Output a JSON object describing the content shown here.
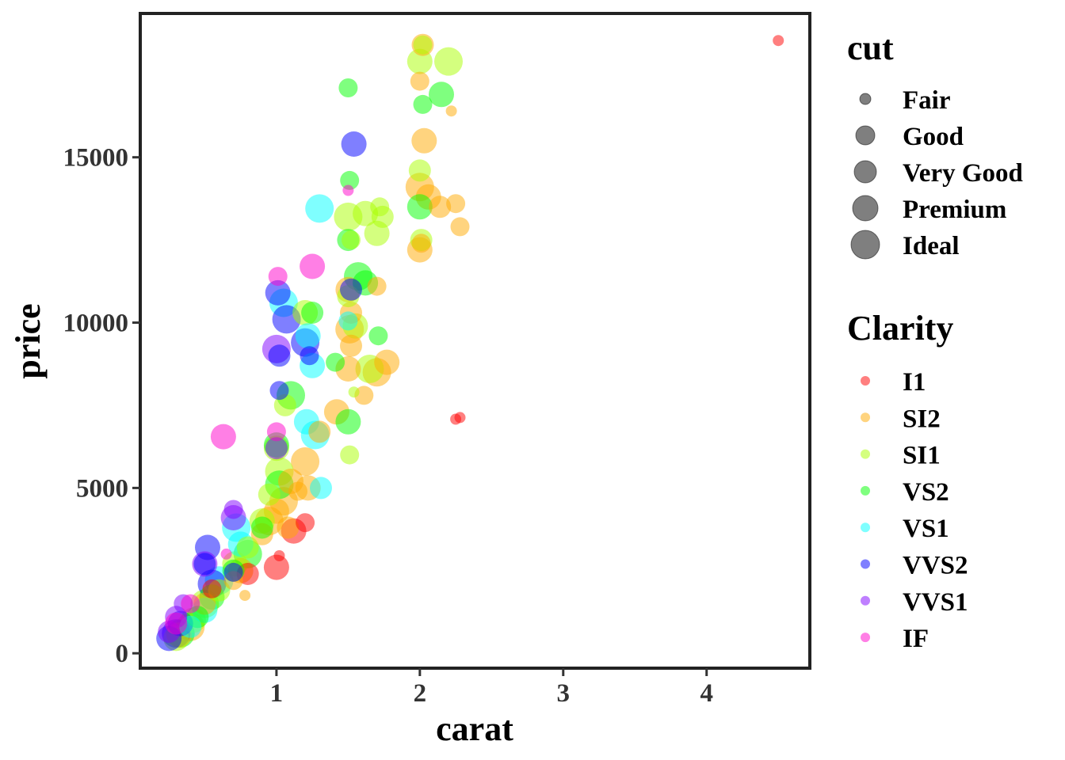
{
  "chart_data": {
    "type": "scatter",
    "xlabel": "carat",
    "ylabel": "price",
    "xlim": [
      0.05,
      4.72
    ],
    "ylim": [
      -450,
      19350
    ],
    "x_ticks": [
      1,
      2,
      3,
      4
    ],
    "x_tick_labels": [
      "1",
      "2",
      "3",
      "4"
    ],
    "y_ticks": [
      0,
      5000,
      10000,
      15000
    ],
    "y_tick_labels": [
      "0",
      "5000",
      "10000",
      "15000"
    ],
    "grid": false,
    "legend_position": "right",
    "point_alpha": 0.5,
    "size_legend": {
      "title": "cut",
      "levels": [
        "Fair",
        "Good",
        "Very Good",
        "Premium",
        "Ideal"
      ],
      "color": "#000000"
    },
    "color_legend": {
      "title": "Clarity",
      "levels": [
        "I1",
        "SI2",
        "SI1",
        "VS2",
        "VS1",
        "VVS2",
        "VVS1",
        "IF"
      ],
      "colors": {
        "I1": "#ff0000",
        "SI2": "#ffaa00",
        "SI1": "#aaff00",
        "VS2": "#00ff00",
        "VS1": "#00ffff",
        "VVS2": "#0000ff",
        "VVS1": "#8000ff",
        "IF": "#ff00cc"
      }
    },
    "points": [
      {
        "carat": 4.5,
        "price": 18530,
        "cut": "Fair",
        "clarity": "I1"
      },
      {
        "carat": 2.25,
        "price": 7080,
        "cut": "Fair",
        "clarity": "I1"
      },
      {
        "carat": 2.28,
        "price": 7130,
        "cut": "Fair",
        "clarity": "I1"
      },
      {
        "carat": 1.0,
        "price": 2600,
        "cut": "Premium",
        "clarity": "I1"
      },
      {
        "carat": 1.02,
        "price": 2950,
        "cut": "Fair",
        "clarity": "I1"
      },
      {
        "carat": 1.2,
        "price": 3950,
        "cut": "Good",
        "clarity": "I1"
      },
      {
        "carat": 1.12,
        "price": 3700,
        "cut": "Premium",
        "clarity": "I1"
      },
      {
        "carat": 0.55,
        "price": 1950,
        "cut": "Good",
        "clarity": "I1"
      },
      {
        "carat": 0.8,
        "price": 2400,
        "cut": "Very Good",
        "clarity": "I1"
      },
      {
        "carat": 2.02,
        "price": 18400,
        "cut": "Very Good",
        "clarity": "SI2"
      },
      {
        "carat": 2.0,
        "price": 17300,
        "cut": "Good",
        "clarity": "SI2"
      },
      {
        "carat": 2.22,
        "price": 16400,
        "cut": "Fair",
        "clarity": "SI2"
      },
      {
        "carat": 2.03,
        "price": 15500,
        "cut": "Premium",
        "clarity": "SI2"
      },
      {
        "carat": 2.0,
        "price": 14100,
        "cut": "Ideal",
        "clarity": "SI2"
      },
      {
        "carat": 2.06,
        "price": 13800,
        "cut": "Premium",
        "clarity": "SI2"
      },
      {
        "carat": 2.14,
        "price": 13500,
        "cut": "Very Good",
        "clarity": "SI2"
      },
      {
        "carat": 2.25,
        "price": 13600,
        "cut": "Good",
        "clarity": "SI2"
      },
      {
        "carat": 2.28,
        "price": 12900,
        "cut": "Good",
        "clarity": "SI2"
      },
      {
        "carat": 2.0,
        "price": 12200,
        "cut": "Premium",
        "clarity": "SI2"
      },
      {
        "carat": 2.01,
        "price": 12400,
        "cut": "Good",
        "clarity": "SI2"
      },
      {
        "carat": 1.5,
        "price": 11000,
        "cut": "Premium",
        "clarity": "SI2"
      },
      {
        "carat": 1.52,
        "price": 10300,
        "cut": "Very Good",
        "clarity": "SI2"
      },
      {
        "carat": 1.51,
        "price": 9800,
        "cut": "Ideal",
        "clarity": "SI2"
      },
      {
        "carat": 1.52,
        "price": 9300,
        "cut": "Very Good",
        "clarity": "SI2"
      },
      {
        "carat": 1.5,
        "price": 8600,
        "cut": "Premium",
        "clarity": "SI2"
      },
      {
        "carat": 1.7,
        "price": 8500,
        "cut": "Ideal",
        "clarity": "SI2"
      },
      {
        "carat": 1.77,
        "price": 8800,
        "cut": "Premium",
        "clarity": "SI2"
      },
      {
        "carat": 1.7,
        "price": 11100,
        "cut": "Good",
        "clarity": "SI2"
      },
      {
        "carat": 1.61,
        "price": 7800,
        "cut": "Good",
        "clarity": "SI2"
      },
      {
        "carat": 1.42,
        "price": 7300,
        "cut": "Premium",
        "clarity": "SI2"
      },
      {
        "carat": 1.3,
        "price": 6700,
        "cut": "Very Good",
        "clarity": "SI2"
      },
      {
        "carat": 1.2,
        "price": 5800,
        "cut": "Ideal",
        "clarity": "SI2"
      },
      {
        "carat": 1.1,
        "price": 5200,
        "cut": "Premium",
        "clarity": "SI2"
      },
      {
        "carat": 1.05,
        "price": 4600,
        "cut": "Ideal",
        "clarity": "SI2"
      },
      {
        "carat": 1.0,
        "price": 4300,
        "cut": "Premium",
        "clarity": "SI2"
      },
      {
        "carat": 0.95,
        "price": 4000,
        "cut": "Ideal",
        "clarity": "SI2"
      },
      {
        "carat": 1.08,
        "price": 3800,
        "cut": "Very Good",
        "clarity": "SI2"
      },
      {
        "carat": 1.15,
        "price": 4900,
        "cut": "Good",
        "clarity": "SI2"
      },
      {
        "carat": 1.22,
        "price": 5000,
        "cut": "Premium",
        "clarity": "SI2"
      },
      {
        "carat": 0.9,
        "price": 3600,
        "cut": "Very Good",
        "clarity": "SI2"
      },
      {
        "carat": 0.75,
        "price": 2500,
        "cut": "Premium",
        "clarity": "SI2"
      },
      {
        "carat": 0.7,
        "price": 2200,
        "cut": "Good",
        "clarity": "SI2"
      },
      {
        "carat": 0.78,
        "price": 1750,
        "cut": "Fair",
        "clarity": "SI2"
      },
      {
        "carat": 0.5,
        "price": 1500,
        "cut": "Very Good",
        "clarity": "SI2"
      },
      {
        "carat": 0.4,
        "price": 800,
        "cut": "Ideal",
        "clarity": "SI2"
      },
      {
        "carat": 0.32,
        "price": 550,
        "cut": "Premium",
        "clarity": "SI2"
      },
      {
        "carat": 2.0,
        "price": 17900,
        "cut": "Premium",
        "clarity": "SI1"
      },
      {
        "carat": 2.02,
        "price": 18400,
        "cut": "Good",
        "clarity": "SI1"
      },
      {
        "carat": 2.2,
        "price": 17900,
        "cut": "Ideal",
        "clarity": "SI1"
      },
      {
        "carat": 2.0,
        "price": 14600,
        "cut": "Very Good",
        "clarity": "SI1"
      },
      {
        "carat": 2.01,
        "price": 12500,
        "cut": "Very Good",
        "clarity": "SI1"
      },
      {
        "carat": 1.5,
        "price": 13200,
        "cut": "Ideal",
        "clarity": "SI1"
      },
      {
        "carat": 1.62,
        "price": 13300,
        "cut": "Premium",
        "clarity": "SI1"
      },
      {
        "carat": 1.7,
        "price": 12700,
        "cut": "Premium",
        "clarity": "SI1"
      },
      {
        "carat": 1.74,
        "price": 13200,
        "cut": "Very Good",
        "clarity": "SI1"
      },
      {
        "carat": 1.72,
        "price": 13500,
        "cut": "Good",
        "clarity": "SI1"
      },
      {
        "carat": 1.52,
        "price": 12500,
        "cut": "Good",
        "clarity": "SI1"
      },
      {
        "carat": 1.5,
        "price": 10800,
        "cut": "Very Good",
        "clarity": "SI1"
      },
      {
        "carat": 1.55,
        "price": 9900,
        "cut": "Premium",
        "clarity": "SI1"
      },
      {
        "carat": 1.65,
        "price": 8600,
        "cut": "Ideal",
        "clarity": "SI1"
      },
      {
        "carat": 1.54,
        "price": 7900,
        "cut": "Fair",
        "clarity": "SI1"
      },
      {
        "carat": 1.51,
        "price": 6000,
        "cut": "Good",
        "clarity": "SI1"
      },
      {
        "carat": 1.2,
        "price": 10300,
        "cut": "Premium",
        "clarity": "SI1"
      },
      {
        "carat": 1.06,
        "price": 7500,
        "cut": "Very Good",
        "clarity": "SI1"
      },
      {
        "carat": 1.0,
        "price": 6200,
        "cut": "Premium",
        "clarity": "SI1"
      },
      {
        "carat": 1.02,
        "price": 5500,
        "cut": "Ideal",
        "clarity": "SI1"
      },
      {
        "carat": 0.95,
        "price": 4800,
        "cut": "Very Good",
        "clarity": "SI1"
      },
      {
        "carat": 0.9,
        "price": 4000,
        "cut": "Premium",
        "clarity": "SI1"
      },
      {
        "carat": 0.8,
        "price": 3200,
        "cut": "Very Good",
        "clarity": "SI1"
      },
      {
        "carat": 0.71,
        "price": 2700,
        "cut": "Premium",
        "clarity": "SI1"
      },
      {
        "carat": 0.6,
        "price": 1900,
        "cut": "Very Good",
        "clarity": "SI1"
      },
      {
        "carat": 0.5,
        "price": 1500,
        "cut": "Ideal",
        "clarity": "SI1"
      },
      {
        "carat": 0.42,
        "price": 1000,
        "cut": "Premium",
        "clarity": "SI1"
      },
      {
        "carat": 0.3,
        "price": 450,
        "cut": "Premium",
        "clarity": "SI1"
      },
      {
        "carat": 1.5,
        "price": 17100,
        "cut": "Good",
        "clarity": "VS2"
      },
      {
        "carat": 2.02,
        "price": 16600,
        "cut": "Good",
        "clarity": "VS2"
      },
      {
        "carat": 2.15,
        "price": 16900,
        "cut": "Premium",
        "clarity": "VS2"
      },
      {
        "carat": 2.0,
        "price": 13500,
        "cut": "Premium",
        "clarity": "VS2"
      },
      {
        "carat": 1.51,
        "price": 14300,
        "cut": "Good",
        "clarity": "VS2"
      },
      {
        "carat": 1.57,
        "price": 11400,
        "cut": "Ideal",
        "clarity": "VS2"
      },
      {
        "carat": 1.62,
        "price": 11200,
        "cut": "Premium",
        "clarity": "VS2"
      },
      {
        "carat": 1.5,
        "price": 12500,
        "cut": "Very Good",
        "clarity": "VS2"
      },
      {
        "carat": 1.71,
        "price": 9600,
        "cut": "Good",
        "clarity": "VS2"
      },
      {
        "carat": 1.41,
        "price": 8800,
        "cut": "Good",
        "clarity": "VS2"
      },
      {
        "carat": 1.5,
        "price": 7000,
        "cut": "Premium",
        "clarity": "VS2"
      },
      {
        "carat": 1.25,
        "price": 10300,
        "cut": "Very Good",
        "clarity": "VS2"
      },
      {
        "carat": 1.1,
        "price": 7800,
        "cut": "Ideal",
        "clarity": "VS2"
      },
      {
        "carat": 1.0,
        "price": 6300,
        "cut": "Premium",
        "clarity": "VS2"
      },
      {
        "carat": 1.02,
        "price": 5100,
        "cut": "Ideal",
        "clarity": "VS2"
      },
      {
        "carat": 0.9,
        "price": 3800,
        "cut": "Very Good",
        "clarity": "VS2"
      },
      {
        "carat": 0.8,
        "price": 3000,
        "cut": "Ideal",
        "clarity": "VS2"
      },
      {
        "carat": 0.7,
        "price": 2500,
        "cut": "Very Good",
        "clarity": "VS2"
      },
      {
        "carat": 0.55,
        "price": 1700,
        "cut": "Premium",
        "clarity": "VS2"
      },
      {
        "carat": 0.45,
        "price": 1100,
        "cut": "Very Good",
        "clarity": "VS2"
      },
      {
        "carat": 0.33,
        "price": 600,
        "cut": "Ideal",
        "clarity": "VS2"
      },
      {
        "carat": 1.3,
        "price": 13450,
        "cut": "Ideal",
        "clarity": "VS1"
      },
      {
        "carat": 1.5,
        "price": 10050,
        "cut": "Good",
        "clarity": "VS1"
      },
      {
        "carat": 1.22,
        "price": 9600,
        "cut": "Premium",
        "clarity": "VS1"
      },
      {
        "carat": 1.25,
        "price": 8700,
        "cut": "Premium",
        "clarity": "VS1"
      },
      {
        "carat": 1.31,
        "price": 5000,
        "cut": "Very Good",
        "clarity": "VS1"
      },
      {
        "carat": 1.05,
        "price": 10600,
        "cut": "Ideal",
        "clarity": "VS1"
      },
      {
        "carat": 1.27,
        "price": 6600,
        "cut": "Ideal",
        "clarity": "VS1"
      },
      {
        "carat": 1.21,
        "price": 7000,
        "cut": "Premium",
        "clarity": "VS1"
      },
      {
        "carat": 0.72,
        "price": 3800,
        "cut": "Ideal",
        "clarity": "VS1"
      },
      {
        "carat": 0.75,
        "price": 3300,
        "cut": "Premium",
        "clarity": "VS1"
      },
      {
        "carat": 0.6,
        "price": 2200,
        "cut": "Ideal",
        "clarity": "VS1"
      },
      {
        "carat": 0.5,
        "price": 1300,
        "cut": "Premium",
        "clarity": "VS1"
      },
      {
        "carat": 0.4,
        "price": 800,
        "cut": "Very Good",
        "clarity": "VS1"
      },
      {
        "carat": 1.54,
        "price": 15400,
        "cut": "Premium",
        "clarity": "VVS2"
      },
      {
        "carat": 1.01,
        "price": 10900,
        "cut": "Premium",
        "clarity": "VVS2"
      },
      {
        "carat": 1.07,
        "price": 10100,
        "cut": "Ideal",
        "clarity": "VVS2"
      },
      {
        "carat": 1.2,
        "price": 9400,
        "cut": "Ideal",
        "clarity": "VVS2"
      },
      {
        "carat": 1.02,
        "price": 9000,
        "cut": "Very Good",
        "clarity": "VVS2"
      },
      {
        "carat": 1.23,
        "price": 9000,
        "cut": "Good",
        "clarity": "VVS2"
      },
      {
        "carat": 1.52,
        "price": 11000,
        "cut": "Very Good",
        "clarity": "VVS2"
      },
      {
        "carat": 1.02,
        "price": 7950,
        "cut": "Good",
        "clarity": "VVS2"
      },
      {
        "carat": 0.52,
        "price": 3200,
        "cut": "Premium",
        "clarity": "VVS2"
      },
      {
        "carat": 0.7,
        "price": 2450,
        "cut": "Good",
        "clarity": "VVS2"
      },
      {
        "carat": 0.55,
        "price": 2100,
        "cut": "Ideal",
        "clarity": "VVS2"
      },
      {
        "carat": 0.5,
        "price": 2700,
        "cut": "Very Good",
        "clarity": "VVS2"
      },
      {
        "carat": 0.3,
        "price": 600,
        "cut": "Ideal",
        "clarity": "VVS2"
      },
      {
        "carat": 0.33,
        "price": 900,
        "cut": "Premium",
        "clarity": "VVS2"
      },
      {
        "carat": 0.25,
        "price": 450,
        "cut": "Premium",
        "clarity": "VVS2"
      },
      {
        "carat": 1.0,
        "price": 9200,
        "cut": "Ideal",
        "clarity": "VVS1"
      },
      {
        "carat": 1.0,
        "price": 6200,
        "cut": "Very Good",
        "clarity": "VVS1"
      },
      {
        "carat": 0.7,
        "price": 4350,
        "cut": "Good",
        "clarity": "VVS1"
      },
      {
        "carat": 0.7,
        "price": 4100,
        "cut": "Premium",
        "clarity": "VVS1"
      },
      {
        "carat": 0.5,
        "price": 2700,
        "cut": "Premium",
        "clarity": "VVS1"
      },
      {
        "carat": 0.3,
        "price": 1100,
        "cut": "Very Good",
        "clarity": "VVS1"
      },
      {
        "carat": 0.35,
        "price": 1500,
        "cut": "Good",
        "clarity": "VVS1"
      },
      {
        "carat": 0.25,
        "price": 650,
        "cut": "Very Good",
        "clarity": "VVS1"
      },
      {
        "carat": 1.5,
        "price": 14000,
        "cut": "Fair",
        "clarity": "IF"
      },
      {
        "carat": 1.25,
        "price": 11700,
        "cut": "Premium",
        "clarity": "IF"
      },
      {
        "carat": 1.01,
        "price": 11400,
        "cut": "Good",
        "clarity": "IF"
      },
      {
        "carat": 0.63,
        "price": 6550,
        "cut": "Premium",
        "clarity": "IF"
      },
      {
        "carat": 1.0,
        "price": 6700,
        "cut": "Good",
        "clarity": "IF"
      },
      {
        "carat": 0.65,
        "price": 3000,
        "cut": "Fair",
        "clarity": "IF"
      },
      {
        "carat": 0.4,
        "price": 1500,
        "cut": "Good",
        "clarity": "IF"
      },
      {
        "carat": 0.3,
        "price": 900,
        "cut": "Very Good",
        "clarity": "IF"
      }
    ]
  }
}
